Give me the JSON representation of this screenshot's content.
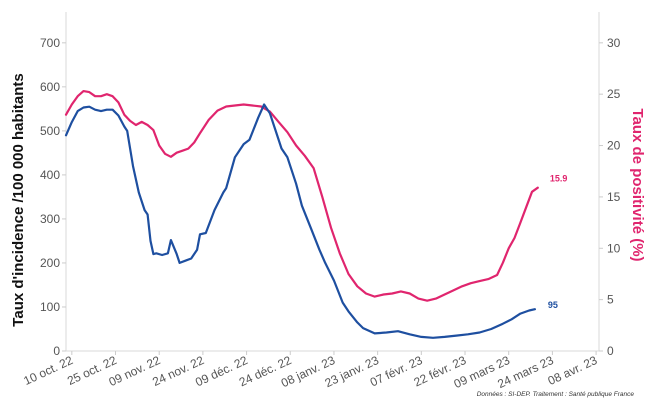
{
  "chart_data": {
    "type": "line",
    "xlabel": "",
    "ylabel_left": "Taux d'incidence /100 000 habitants",
    "ylabel_right": "Taux de positivité (%)",
    "x_ticks": [
      "10 oct. 22",
      "25 oct. 22",
      "09 nov. 22",
      "24 nov. 22",
      "09 déc. 22",
      "24 déc. 22",
      "08 janv. 23",
      "23 janv. 23",
      "07 févr. 23",
      "22 févr. 23",
      "09 mars 23",
      "24 mars 23",
      "08 avr. 23"
    ],
    "x_range": [
      "2022-10-08",
      "2023-04-09"
    ],
    "ylim_left": [
      0,
      770
    ],
    "ylim_right": [
      0,
      33
    ],
    "yticks_left": [
      0,
      100,
      200,
      300,
      400,
      500,
      600,
      700
    ],
    "yticks_right": [
      0,
      5,
      10,
      15,
      20,
      25,
      30
    ],
    "grid": false,
    "series": [
      {
        "axis": "left",
        "color": "#1e4fa0",
        "end_label": "95",
        "points": [
          [
            "2022-10-08",
            490
          ],
          [
            "2022-10-10",
            520
          ],
          [
            "2022-10-12",
            545
          ],
          [
            "2022-10-14",
            553
          ],
          [
            "2022-10-16",
            555
          ],
          [
            "2022-10-18",
            548
          ],
          [
            "2022-10-20",
            545
          ],
          [
            "2022-10-22",
            548
          ],
          [
            "2022-10-24",
            548
          ],
          [
            "2022-10-26",
            535
          ],
          [
            "2022-10-28",
            510
          ],
          [
            "2022-10-29",
            500
          ],
          [
            "2022-10-31",
            420
          ],
          [
            "2022-11-02",
            360
          ],
          [
            "2022-11-04",
            320
          ],
          [
            "2022-11-05",
            310
          ],
          [
            "2022-11-06",
            250
          ],
          [
            "2022-11-07",
            220
          ],
          [
            "2022-11-08",
            222
          ],
          [
            "2022-11-10",
            218
          ],
          [
            "2022-11-12",
            222
          ],
          [
            "2022-11-13",
            252
          ],
          [
            "2022-11-15",
            220
          ],
          [
            "2022-11-16",
            200
          ],
          [
            "2022-11-18",
            205
          ],
          [
            "2022-11-20",
            210
          ],
          [
            "2022-11-22",
            230
          ],
          [
            "2022-11-23",
            265
          ],
          [
            "2022-11-25",
            268
          ],
          [
            "2022-11-28",
            320
          ],
          [
            "2022-12-01",
            360
          ],
          [
            "2022-12-02",
            370
          ],
          [
            "2022-12-05",
            440
          ],
          [
            "2022-12-08",
            470
          ],
          [
            "2022-12-10",
            480
          ],
          [
            "2022-12-13",
            530
          ],
          [
            "2022-12-15",
            560
          ],
          [
            "2022-12-17",
            540
          ],
          [
            "2022-12-19",
            500
          ],
          [
            "2022-12-21",
            460
          ],
          [
            "2022-12-23",
            440
          ],
          [
            "2022-12-26",
            380
          ],
          [
            "2022-12-28",
            330
          ],
          [
            "2022-12-31",
            280
          ],
          [
            "2023-01-03",
            230
          ],
          [
            "2023-01-05",
            200
          ],
          [
            "2023-01-08",
            160
          ],
          [
            "2023-01-11",
            110
          ],
          [
            "2023-01-13",
            90
          ],
          [
            "2023-01-16",
            65
          ],
          [
            "2023-01-18",
            52
          ],
          [
            "2023-01-22",
            40
          ],
          [
            "2023-01-26",
            42
          ],
          [
            "2023-01-30",
            45
          ],
          [
            "2023-02-03",
            38
          ],
          [
            "2023-02-07",
            32
          ],
          [
            "2023-02-11",
            30
          ],
          [
            "2023-02-15",
            32
          ],
          [
            "2023-02-19",
            35
          ],
          [
            "2023-02-23",
            38
          ],
          [
            "2023-02-27",
            42
          ],
          [
            "2023-03-03",
            50
          ],
          [
            "2023-03-07",
            62
          ],
          [
            "2023-03-10",
            72
          ],
          [
            "2023-03-13",
            85
          ],
          [
            "2023-03-16",
            92
          ],
          [
            "2023-03-18",
            95
          ]
        ]
      },
      {
        "axis": "right",
        "color": "#e0256e",
        "end_label": "15.9",
        "points": [
          [
            "2022-10-08",
            23
          ],
          [
            "2022-10-10",
            24
          ],
          [
            "2022-10-12",
            24.8
          ],
          [
            "2022-10-14",
            25.3
          ],
          [
            "2022-10-16",
            25.2
          ],
          [
            "2022-10-18",
            24.8
          ],
          [
            "2022-10-20",
            24.8
          ],
          [
            "2022-10-22",
            25
          ],
          [
            "2022-10-24",
            24.8
          ],
          [
            "2022-10-26",
            24.2
          ],
          [
            "2022-10-28",
            23
          ],
          [
            "2022-10-30",
            22.4
          ],
          [
            "2022-11-01",
            22
          ],
          [
            "2022-11-03",
            22.3
          ],
          [
            "2022-11-05",
            22
          ],
          [
            "2022-11-07",
            21.5
          ],
          [
            "2022-11-09",
            20
          ],
          [
            "2022-11-11",
            19.2
          ],
          [
            "2022-11-13",
            18.9
          ],
          [
            "2022-11-15",
            19.3
          ],
          [
            "2022-11-17",
            19.5
          ],
          [
            "2022-11-19",
            19.7
          ],
          [
            "2022-11-21",
            20.3
          ],
          [
            "2022-11-23",
            21.2
          ],
          [
            "2022-11-26",
            22.5
          ],
          [
            "2022-11-29",
            23.4
          ],
          [
            "2022-12-02",
            23.8
          ],
          [
            "2022-12-05",
            23.9
          ],
          [
            "2022-12-08",
            24
          ],
          [
            "2022-12-11",
            23.9
          ],
          [
            "2022-12-14",
            23.8
          ],
          [
            "2022-12-17",
            23.3
          ],
          [
            "2022-12-20",
            22.3
          ],
          [
            "2022-12-23",
            21.3
          ],
          [
            "2022-12-26",
            20
          ],
          [
            "2022-12-29",
            19
          ],
          [
            "2023-01-01",
            17.8
          ],
          [
            "2023-01-04",
            15
          ],
          [
            "2023-01-07",
            12
          ],
          [
            "2023-01-10",
            9.5
          ],
          [
            "2023-01-13",
            7.5
          ],
          [
            "2023-01-16",
            6.3
          ],
          [
            "2023-01-19",
            5.6
          ],
          [
            "2023-01-22",
            5.3
          ],
          [
            "2023-01-25",
            5.5
          ],
          [
            "2023-01-28",
            5.6
          ],
          [
            "2023-01-31",
            5.8
          ],
          [
            "2023-02-03",
            5.6
          ],
          [
            "2023-02-06",
            5.1
          ],
          [
            "2023-02-09",
            4.9
          ],
          [
            "2023-02-12",
            5.1
          ],
          [
            "2023-02-15",
            5.5
          ],
          [
            "2023-02-18",
            5.9
          ],
          [
            "2023-02-21",
            6.3
          ],
          [
            "2023-02-24",
            6.6
          ],
          [
            "2023-02-27",
            6.8
          ],
          [
            "2023-03-02",
            7
          ],
          [
            "2023-03-05",
            7.4
          ],
          [
            "2023-03-07",
            8.6
          ],
          [
            "2023-03-09",
            10
          ],
          [
            "2023-03-11",
            11
          ],
          [
            "2023-03-13",
            12.5
          ],
          [
            "2023-03-15",
            14
          ],
          [
            "2023-03-17",
            15.5
          ],
          [
            "2023-03-19",
            15.9
          ]
        ]
      }
    ]
  },
  "caption": "Données : SI-DEP. Traitement : Santé publique France"
}
